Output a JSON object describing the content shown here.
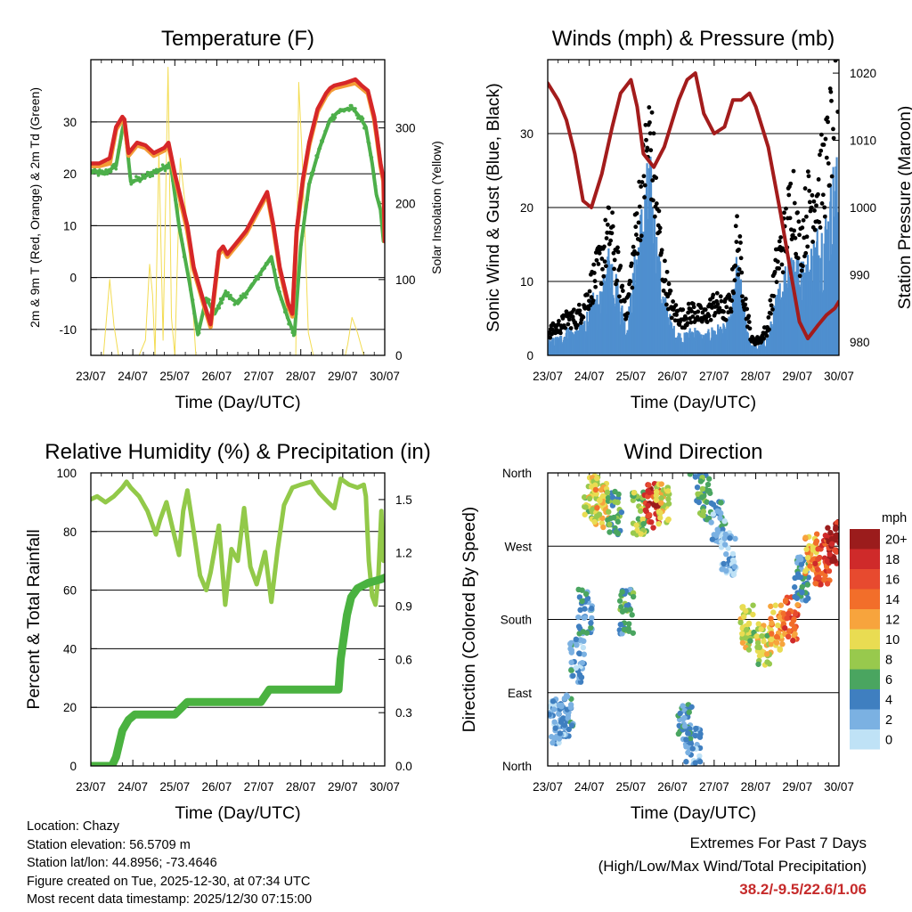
{
  "x_ticks": [
    "23/07",
    "24/07",
    "25/07",
    "26/07",
    "27/07",
    "28/07",
    "29/07",
    "30/07"
  ],
  "x_label": "Time (Day/UTC)",
  "chart_data": [
    {
      "type": "line",
      "title": "Temperature (F)",
      "ylabel": "2m & 9m T (Red, Orange) & 2m Td (Green)",
      "y2label": "Solar Insolation (Yellow)",
      "ylim": [
        -15,
        42
      ],
      "y_ticks": [
        -10,
        0,
        10,
        20,
        30
      ],
      "y2lim": [
        0,
        390
      ],
      "y2_ticks": [
        0,
        100,
        200,
        300
      ],
      "series": [
        {
          "name": "2m T (Red)",
          "color": "#d62728",
          "x": [
            0,
            0.2,
            0.45,
            0.6,
            0.75,
            0.8,
            0.9,
            1.1,
            1.3,
            1.5,
            1.75,
            1.85,
            2,
            2.3,
            2.45,
            2.7,
            2.85,
            3.05,
            3.15,
            3.25,
            3.4,
            3.55,
            3.7,
            3.9,
            4.2,
            4.35,
            4.5,
            4.7,
            4.8,
            4.9,
            5.05,
            5.2,
            5.4,
            5.6,
            5.7,
            5.8,
            6.05,
            6.3,
            6.45,
            6.6,
            6.75,
            6.82,
            6.9,
            6.97,
            7
          ],
          "y": [
            22,
            22,
            23,
            29,
            31,
            30.5,
            24,
            26,
            25.5,
            24,
            25,
            26,
            20,
            10,
            2,
            -5,
            -9,
            5,
            6,
            4.5,
            6,
            7.5,
            9,
            12,
            16.5,
            10,
            2,
            -5,
            -7,
            9,
            19,
            26,
            32.5,
            35.5,
            36.5,
            37,
            37.5,
            38.2,
            37,
            36,
            31,
            27,
            22,
            19,
            7
          ]
        },
        {
          "name": "9m T (Orange)",
          "color": "#f39c37",
          "x": [
            0,
            0.2,
            0.45,
            0.6,
            0.75,
            0.8,
            0.9,
            1.1,
            1.3,
            1.5,
            1.75,
            1.85,
            2,
            2.3,
            2.45,
            2.7,
            2.85,
            3.05,
            3.15,
            3.25,
            3.4,
            3.55,
            3.7,
            3.9,
            4.2,
            4.35,
            4.5,
            4.7,
            4.8,
            4.9,
            5.05,
            5.2,
            5.4,
            5.6,
            5.7,
            5.8,
            6.05,
            6.3,
            6.45,
            6.6,
            6.75,
            6.82,
            6.9,
            6.97,
            7
          ],
          "y": [
            21.5,
            21.5,
            22,
            28.5,
            30.5,
            30,
            23.5,
            25.5,
            25,
            23.5,
            24.5,
            25.5,
            19.5,
            9,
            1.5,
            -5.5,
            -9.5,
            4.5,
            5.5,
            4,
            5.5,
            7,
            8.5,
            11.5,
            16,
            9.5,
            1.5,
            -5.5,
            -7.5,
            8.5,
            18.5,
            25.5,
            32,
            35,
            36,
            36.5,
            37,
            37.5,
            36.5,
            35.5,
            30.5,
            26.5,
            21.5,
            18.5,
            7
          ]
        },
        {
          "name": "2m Td (Green)",
          "color": "#4daf4a",
          "x": [
            0,
            0.3,
            0.6,
            0.75,
            0.8,
            0.95,
            1.2,
            1.4,
            1.7,
            1.9,
            2.1,
            2.35,
            2.55,
            2.75,
            2.95,
            3.2,
            3.5,
            3.8,
            4.05,
            4.3,
            4.45,
            4.7,
            4.85,
            5,
            5.2,
            5.45,
            5.7,
            5.9,
            6.1,
            6.25,
            6.4,
            6.55,
            6.7,
            6.8,
            6.9,
            6.97
          ],
          "y": [
            20.5,
            20,
            21.5,
            28.5,
            30,
            18.5,
            19,
            20,
            21,
            22,
            10,
            -1,
            -11,
            -4,
            -7,
            -3,
            -5,
            -2,
            1,
            4,
            -2,
            -8,
            -11,
            6,
            18,
            25,
            30.5,
            32,
            32.5,
            32.5,
            31,
            29,
            22,
            16,
            13,
            7
          ]
        },
        {
          "name": "Solar Insolation (Yellow)",
          "color": "#f3dc52",
          "axis": "y2",
          "x": [
            0,
            0.3,
            0.45,
            0.55,
            0.66,
            0.8,
            0.9,
            1,
            1.15,
            1.3,
            1.4,
            1.47,
            1.53,
            1.62,
            1.72,
            1.84,
            1.92,
            2,
            2.13,
            2.3,
            2.4,
            2.5,
            2.58,
            2.7,
            2.85,
            3,
            3.25,
            3.45,
            3.55,
            3.7,
            3.85,
            3.98,
            4.1,
            4.25,
            4.35,
            4.45,
            4.58,
            4.7,
            4.88,
            4.95,
            5.05,
            5.18,
            5.3,
            5.45,
            5.6,
            5.75,
            5.9,
            5.98,
            6.06,
            6.12,
            6.22,
            6.35,
            6.5,
            6.7,
            7
          ],
          "y": [
            0,
            0,
            100,
            40,
            0,
            0,
            0,
            0,
            0,
            20,
            120,
            80,
            0,
            270,
            20,
            380,
            50,
            0,
            260,
            170,
            90,
            0,
            0,
            0,
            0,
            0,
            0,
            0,
            0,
            0,
            0,
            0,
            0,
            0,
            0,
            0,
            0,
            0,
            0,
            360,
            240,
            30,
            0,
            0,
            0,
            0,
            0,
            0,
            0,
            15,
            50,
            30,
            0,
            0,
            0
          ]
        }
      ]
    },
    {
      "type": "line",
      "title": "Winds (mph) & Pressure (mb)",
      "ylabel": "Sonic Wind & Gust (Blue, Black)",
      "y2label": "Station Pressure (Maroon)",
      "ylim": [
        0,
        40
      ],
      "y_ticks": [
        0,
        10,
        20,
        30
      ],
      "y2lim": [
        978,
        1022
      ],
      "y2_ticks": [
        980,
        990,
        1000,
        1010,
        1020
      ],
      "series": [
        {
          "name": "Sonic Wind (Blue)",
          "color": "#4f8fcf",
          "x": [
            0,
            0.3,
            0.5,
            0.7,
            0.9,
            1.1,
            1.3,
            1.5,
            1.7,
            1.9,
            2.05,
            2.15,
            2.3,
            2.45,
            2.6,
            2.75,
            3,
            3.25,
            3.5,
            3.75,
            4,
            4.25,
            4.4,
            4.55,
            4.75,
            4.9,
            5.1,
            5.3,
            5.5,
            5.7,
            5.9,
            6.05,
            6.25,
            6.5,
            6.75,
            6.9,
            7
          ],
          "y": [
            1.5,
            2,
            3,
            2.5,
            4,
            6,
            6,
            12,
            7,
            3,
            8,
            12,
            16,
            20,
            13,
            7,
            3,
            2,
            3,
            2,
            3,
            3,
            4,
            10,
            4,
            1,
            1,
            2,
            6,
            9,
            12,
            9,
            10,
            13,
            15,
            20,
            18
          ]
        },
        {
          "name": "Gust (Black)",
          "color": "#000000",
          "x": [
            0,
            0.3,
            0.5,
            0.7,
            0.9,
            1.1,
            1.3,
            1.5,
            1.7,
            1.9,
            2.05,
            2.15,
            2.3,
            2.45,
            2.6,
            2.75,
            3,
            3.25,
            3.5,
            3.75,
            4,
            4.25,
            4.4,
            4.55,
            4.75,
            4.9,
            5.1,
            5.3,
            5.5,
            5.7,
            5.9,
            6.05,
            6.25,
            6.5,
            6.75,
            6.9,
            7
          ],
          "y": [
            3,
            4,
            5,
            5,
            7,
            10,
            13,
            17,
            11,
            6,
            13,
            18,
            24,
            30,
            21,
            12,
            6,
            5,
            6,
            5,
            7,
            6,
            7,
            16,
            7,
            2,
            2,
            4,
            12,
            16,
            22,
            14,
            20,
            22,
            27,
            35,
            37
          ]
        },
        {
          "name": "Station Pressure (Maroon)",
          "color": "#a31c1c",
          "axis": "y2",
          "x": [
            0,
            0.25,
            0.45,
            0.65,
            0.85,
            1.05,
            1.3,
            1.55,
            1.75,
            2.0,
            2.15,
            2.3,
            2.55,
            2.8,
            3.15,
            3.35,
            3.55,
            3.75,
            4.0,
            4.25,
            4.45,
            4.65,
            4.85,
            5.0,
            5.3,
            5.6,
            5.85,
            6.05,
            6.25,
            6.5,
            6.7,
            6.9,
            7.0
          ],
          "y": [
            1018.5,
            1016,
            1013,
            1008,
            1001,
            1000,
            1005,
            1012,
            1017,
            1019,
            1015,
            1008,
            1006,
            1009,
            1016,
            1019,
            1020,
            1014,
            1011,
            1012,
            1016,
            1016,
            1017,
            1015,
            1009,
            999,
            990,
            983,
            980.5,
            982.5,
            984,
            985,
            986
          ]
        }
      ]
    },
    {
      "type": "line",
      "title": "Relative Humidity (%) & Precipitation (in)",
      "ylabel": "Percent & Total Rainfall",
      "ylim": [
        0,
        100
      ],
      "y_ticks": [
        0,
        20,
        40,
        60,
        80,
        100
      ],
      "y2lim": [
        0,
        1.65
      ],
      "y2_ticks": [
        "0.0",
        "0.3",
        "0.6",
        "0.9",
        "1.2",
        "1.5"
      ],
      "series": [
        {
          "name": "Relative Humidity",
          "color": "#92c949",
          "x": [
            0,
            0.15,
            0.35,
            0.55,
            0.75,
            0.85,
            0.95,
            1.15,
            1.35,
            1.55,
            1.65,
            1.8,
            1.95,
            2.1,
            2.2,
            2.3,
            2.45,
            2.6,
            2.75,
            2.85,
            3.05,
            3.2,
            3.35,
            3.5,
            3.65,
            3.8,
            3.95,
            4.15,
            4.3,
            4.45,
            4.6,
            4.8,
            5,
            5.25,
            5.45,
            5.65,
            5.8,
            5.95,
            6.15,
            6.35,
            6.5,
            6.55,
            6.62,
            6.7,
            6.78,
            6.85,
            6.92,
            6.97
          ],
          "y": [
            91,
            92,
            90,
            92,
            95,
            97,
            95,
            92,
            87,
            79,
            84,
            90,
            81,
            72,
            87,
            94,
            80,
            65,
            60,
            66,
            82,
            55,
            74,
            70,
            88,
            68,
            62,
            73,
            56,
            74,
            89,
            95,
            96,
            97,
            93,
            90,
            88,
            98,
            96,
            95,
            96,
            92,
            70,
            58,
            55,
            65,
            87,
            70
          ]
        },
        {
          "name": "Total Precipitation",
          "color": "#4ab240",
          "axis": "y2",
          "x": [
            0,
            0.5,
            0.6,
            0.75,
            0.9,
            1.05,
            1.5,
            2.0,
            2.3,
            2.8,
            3.5,
            4.05,
            4.25,
            4.7,
            5.5,
            5.9,
            5.95,
            6.1,
            6.2,
            6.35,
            6.6,
            6.9,
            7.0
          ],
          "y": [
            0,
            0,
            0.05,
            0.2,
            0.26,
            0.29,
            0.29,
            0.29,
            0.36,
            0.36,
            0.36,
            0.36,
            0.43,
            0.43,
            0.43,
            0.43,
            0.6,
            0.85,
            0.95,
            1.0,
            1.03,
            1.05,
            1.06
          ]
        }
      ]
    },
    {
      "type": "scatter",
      "title": "Wind Direction",
      "ylabel": "Direction (Colored By Speed)",
      "y_ticks": [
        "North",
        "East",
        "South",
        "West",
        "North"
      ],
      "ylim": [
        0,
        360
      ],
      "colorbar_title": "mph",
      "colorbar_labels": [
        "20+",
        "18",
        "16",
        "14",
        "12",
        "10",
        "8",
        "6",
        "4",
        "2",
        "0"
      ],
      "colorbar_colors": [
        "#9b1c1c",
        "#cf2a2a",
        "#e74a2f",
        "#f26e2a",
        "#f7a43d",
        "#e9dc52",
        "#98c94d",
        "#4aa560",
        "#3f7fc0",
        "#7bb1e2",
        "#bfe2f6"
      ],
      "clusters": [
        {
          "x": 0.2,
          "dir": 55,
          "speed": 2
        },
        {
          "x": 0.45,
          "dir": 60,
          "speed": 3
        },
        {
          "x": 0.7,
          "dir": 130,
          "speed": 3
        },
        {
          "x": 0.9,
          "dir": 190,
          "speed": 4
        },
        {
          "x": 1.05,
          "dir": 330,
          "speed": 9
        },
        {
          "x": 1.3,
          "dir": 320,
          "speed": 11
        },
        {
          "x": 1.6,
          "dir": 310,
          "speed": 6
        },
        {
          "x": 1.9,
          "dir": 190,
          "speed": 5
        },
        {
          "x": 2.2,
          "dir": 310,
          "speed": 8
        },
        {
          "x": 2.5,
          "dir": 320,
          "speed": 17
        },
        {
          "x": 2.75,
          "dir": 320,
          "speed": 10
        },
        {
          "x": 3.3,
          "dir": 50,
          "speed": 4
        },
        {
          "x": 3.5,
          "dir": 20,
          "speed": 3
        },
        {
          "x": 3.75,
          "dir": 330,
          "speed": 6
        },
        {
          "x": 4.1,
          "dir": 300,
          "speed": 3
        },
        {
          "x": 4.35,
          "dir": 260,
          "speed": 1
        },
        {
          "x": 4.8,
          "dir": 170,
          "speed": 9
        },
        {
          "x": 5.2,
          "dir": 150,
          "speed": 9
        },
        {
          "x": 5.5,
          "dir": 170,
          "speed": 12
        },
        {
          "x": 5.85,
          "dir": 180,
          "speed": 15
        },
        {
          "x": 6.1,
          "dir": 230,
          "speed": 4
        },
        {
          "x": 6.35,
          "dir": 260,
          "speed": 12
        },
        {
          "x": 6.6,
          "dir": 250,
          "speed": 16
        },
        {
          "x": 6.85,
          "dir": 275,
          "speed": 19
        }
      ]
    }
  ],
  "footer": {
    "location": "Location: Chazy",
    "elevation": "Station elevation: 56.5709 m",
    "latlon": "Station lat/lon: 44.8956; -73.4646",
    "created": "Figure created on Tue, 2025-12-30, at 07:34 UTC",
    "recent": "Most recent data timestamp: 2025/12/30 07:15:00"
  },
  "extremes": {
    "title": "Extremes For Past 7 Days",
    "subtitle": "(High/Low/Max Wind/Total Precipitation)",
    "values": "38.2/-9.5/22.6/1.06"
  }
}
